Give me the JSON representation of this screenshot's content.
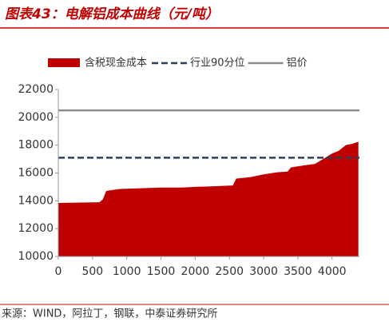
{
  "chart_data": {
    "type": "area",
    "title": "图表43：电解铝成本曲线（元/吨）",
    "x": [
      0,
      600,
      650,
      700,
      750,
      900,
      1200,
      1500,
      1800,
      2000,
      2300,
      2550,
      2600,
      2800,
      3000,
      3200,
      3350,
      3400,
      3600,
      3750,
      3800,
      3900,
      4000,
      4100,
      4200,
      4300,
      4385
    ],
    "series": [
      {
        "name": "含税现金成本",
        "color": "#c00000",
        "values": [
          13850,
          13900,
          14100,
          14700,
          14750,
          14850,
          14900,
          14950,
          14950,
          15000,
          15050,
          15100,
          15600,
          15700,
          15900,
          16050,
          16100,
          16400,
          16550,
          16650,
          16800,
          17100,
          17400,
          17600,
          18000,
          18100,
          18250
        ]
      }
    ],
    "hlines": [
      {
        "name": "行业90分位",
        "color": "#2e3f5c",
        "value": 17100,
        "dashed": true
      },
      {
        "name": "铝价",
        "color": "#8c8c8c",
        "value": 20500,
        "dashed": false
      }
    ],
    "xlim": [
      0,
      4400
    ],
    "xticks": [
      0,
      500,
      1000,
      1500,
      2000,
      2500,
      3000,
      3500,
      4000
    ],
    "ylim": [
      10000,
      22000
    ],
    "yticks": [
      10000,
      12000,
      14000,
      16000,
      18000,
      20000,
      22000
    ]
  },
  "source": "来源：WIND，阿拉丁，钢联，中泰证券研究所"
}
